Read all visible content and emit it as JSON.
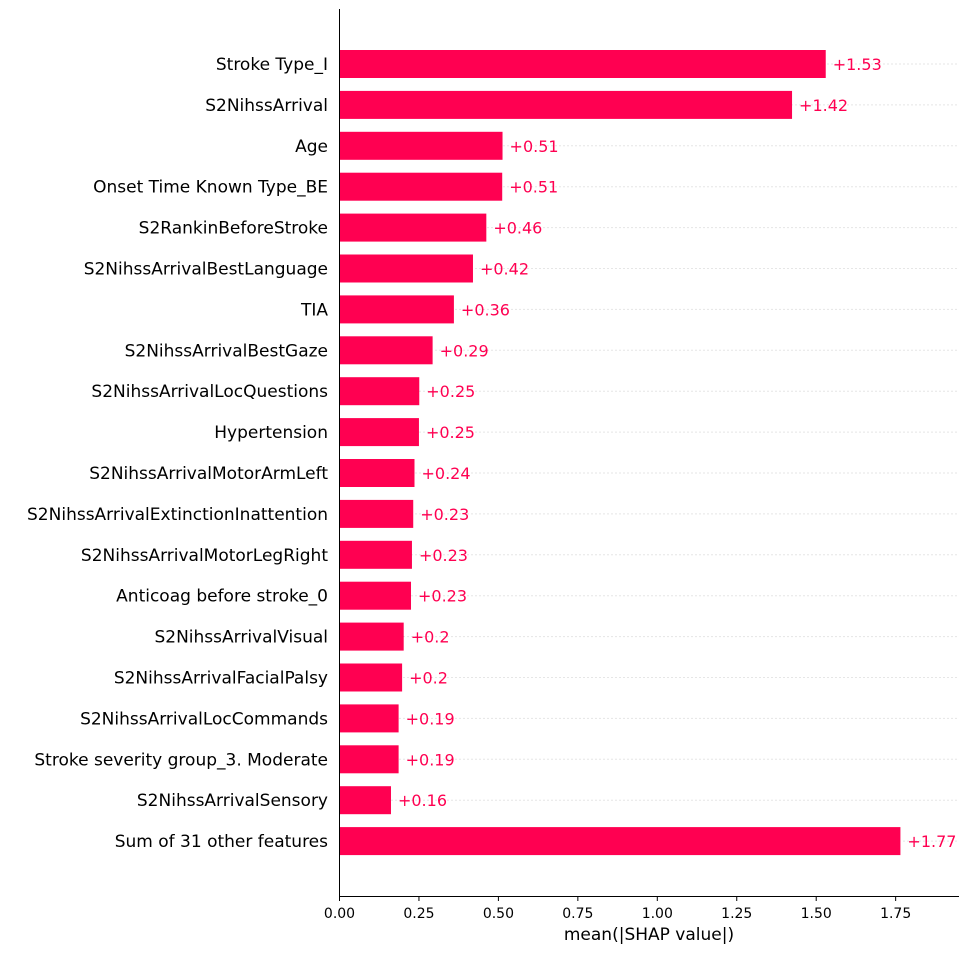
{
  "chart_data": {
    "type": "bar",
    "orientation": "horizontal",
    "xlabel": "mean(|SHAP value|)",
    "xlim": [
      0,
      1.95
    ],
    "xticks": [
      "0.00",
      "0.25",
      "0.50",
      "0.75",
      "1.00",
      "1.25",
      "1.50",
      "1.75"
    ],
    "xtick_values": [
      0,
      0.25,
      0.5,
      0.75,
      1.0,
      1.25,
      1.5,
      1.75
    ],
    "grid": "dotted horizontal guides per row",
    "bar_color": "#ff0051",
    "label_color": "#ff0051",
    "categories": [
      "Stroke Type_I",
      "S2NihssArrival",
      "Age",
      "Onset Time Known Type_BE",
      "S2RankinBeforeStroke",
      "S2NihssArrivalBestLanguage",
      "TIA",
      "S2NihssArrivalBestGaze",
      "S2NihssArrivalLocQuestions",
      "Hypertension",
      "S2NihssArrivalMotorArmLeft",
      "S2NihssArrivalExtinctionInattention",
      "S2NihssArrivalMotorLegRight",
      "Anticoag before stroke_0",
      "S2NihssArrivalVisual",
      "S2NihssArrivalFacialPalsy",
      "S2NihssArrivalLocCommands",
      "Stroke severity group_3. Moderate",
      "S2NihssArrivalSensory",
      "Sum of 31 other features"
    ],
    "values": [
      1.53,
      1.424,
      0.513,
      0.512,
      0.462,
      0.42,
      0.36,
      0.293,
      0.251,
      0.25,
      0.236,
      0.232,
      0.228,
      0.225,
      0.202,
      0.197,
      0.186,
      0.186,
      0.162,
      1.765
    ],
    "value_labels": [
      "+1.53",
      "+1.42",
      "+0.51",
      "+0.51",
      "+0.46",
      "+0.42",
      "+0.36",
      "+0.29",
      "+0.25",
      "+0.25",
      "+0.24",
      "+0.23",
      "+0.23",
      "+0.23",
      "+0.2",
      "+0.2",
      "+0.19",
      "+0.19",
      "+0.16",
      "+1.77"
    ]
  }
}
